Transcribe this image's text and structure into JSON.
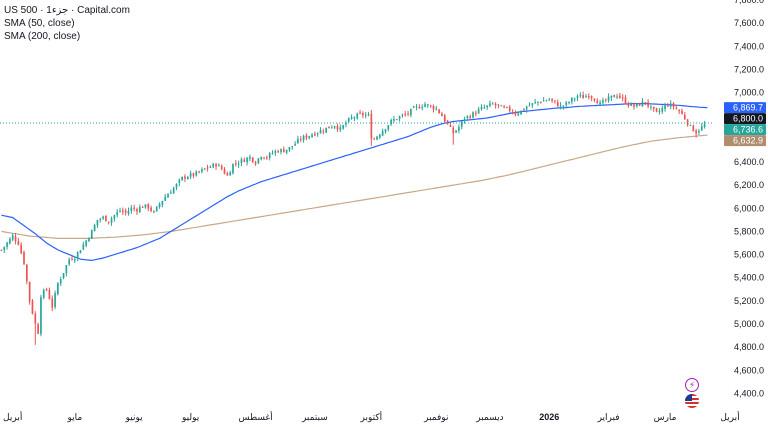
{
  "legend": {
    "title": "US 500 · 1جزء · Capital.com",
    "sma50": "SMA (50, close)",
    "sma200": "SMA (200, close)"
  },
  "colors": {
    "up": "#26a69a",
    "down": "#ef5350",
    "sma50": "#2962ff",
    "sma200": "#c8a88a",
    "price_line": "#26a69a"
  },
  "icons": [
    "lightning-icon",
    "us-flag-icon"
  ],
  "chart_data": {
    "type": "candlestick",
    "ylim": [
      4300,
      7800
    ],
    "y_ticks": [
      {
        "value": 7800,
        "label": "7,800.0"
      },
      {
        "value": 7600,
        "label": "7,600.0"
      },
      {
        "value": 7400,
        "label": "7,400.0"
      },
      {
        "value": 7200,
        "label": "7,200.0"
      },
      {
        "value": 7000,
        "label": "7,000.0"
      },
      {
        "value": 6800,
        "label": "6,800.0"
      },
      {
        "value": 6600,
        "label": "6,600.0"
      },
      {
        "value": 6400,
        "label": "6,400.0"
      },
      {
        "value": 6200,
        "label": "6,200.0"
      },
      {
        "value": 6000,
        "label": "6,000.0"
      },
      {
        "value": 5800,
        "label": "5,800.0"
      },
      {
        "value": 5600,
        "label": "5,600.0"
      },
      {
        "value": 5400,
        "label": "5,400.0"
      },
      {
        "value": 5200,
        "label": "5,200.0"
      },
      {
        "value": 5000,
        "label": "5,000.0"
      },
      {
        "value": 4800,
        "label": "4,800.0"
      },
      {
        "value": 4600,
        "label": "4,600.0"
      },
      {
        "value": 4400,
        "label": "4,400.0"
      }
    ],
    "x_ticks": [
      {
        "label": "أبريل",
        "bar": 4
      },
      {
        "label": "مايو",
        "bar": 26
      },
      {
        "label": "يونيو",
        "bar": 47
      },
      {
        "label": "يوليو",
        "bar": 67
      },
      {
        "label": "أغسطس",
        "bar": 90
      },
      {
        "label": "سبتمبر",
        "bar": 111
      },
      {
        "label": "أكتوبر",
        "bar": 131
      },
      {
        "label": "نوفمبر",
        "bar": 154
      },
      {
        "label": "ديسمبر",
        "bar": 173
      },
      {
        "label": "2026",
        "bar": 194,
        "bold": true
      },
      {
        "label": "فبراير",
        "bar": 215
      },
      {
        "label": "مارس",
        "bar": 235
      },
      {
        "label": "أبريل",
        "bar": 258
      }
    ],
    "price_tags": [
      {
        "label": "6,869.7",
        "value": 6869.7,
        "color": "#2962ff"
      },
      {
        "label": "6,800.0",
        "value": 6800.0,
        "color": "#131722"
      },
      {
        "label": "6,736.6",
        "value": 6736.6,
        "color": "#26a69a"
      },
      {
        "label": "6,632.9",
        "value": 6632.9,
        "color": "#b08d6e"
      }
    ],
    "current_price": 6736.6,
    "bar_count": 250,
    "close_path": [
      [
        0,
        5640
      ],
      [
        4,
        5760
      ],
      [
        6,
        5700
      ],
      [
        8,
        5530
      ],
      [
        10,
        5200
      ],
      [
        12,
        5000
      ],
      [
        13,
        4930
      ],
      [
        14,
        5250
      ],
      [
        16,
        5300
      ],
      [
        18,
        5150
      ],
      [
        20,
        5350
      ],
      [
        22,
        5450
      ],
      [
        24,
        5560
      ],
      [
        26,
        5580
      ],
      [
        28,
        5650
      ],
      [
        30,
        5720
      ],
      [
        32,
        5800
      ],
      [
        34,
        5900
      ],
      [
        36,
        5920
      ],
      [
        38,
        5890
      ],
      [
        40,
        5940
      ],
      [
        42,
        5980
      ],
      [
        44,
        5960
      ],
      [
        46,
        6000
      ],
      [
        48,
        5990
      ],
      [
        50,
        6020
      ],
      [
        52,
        6010
      ],
      [
        54,
        5960
      ],
      [
        56,
        6040
      ],
      [
        58,
        6100
      ],
      [
        60,
        6150
      ],
      [
        62,
        6200
      ],
      [
        64,
        6260
      ],
      [
        66,
        6280
      ],
      [
        68,
        6290
      ],
      [
        70,
        6310
      ],
      [
        72,
        6340
      ],
      [
        74,
        6360
      ],
      [
        76,
        6380
      ],
      [
        78,
        6340
      ],
      [
        80,
        6280
      ],
      [
        82,
        6380
      ],
      [
        84,
        6400
      ],
      [
        86,
        6420
      ],
      [
        88,
        6440
      ],
      [
        90,
        6400
      ],
      [
        92,
        6460
      ],
      [
        94,
        6440
      ],
      [
        96,
        6480
      ],
      [
        98,
        6500
      ],
      [
        100,
        6500
      ],
      [
        102,
        6520
      ],
      [
        104,
        6560
      ],
      [
        106,
        6600
      ],
      [
        108,
        6620
      ],
      [
        110,
        6640
      ],
      [
        112,
        6660
      ],
      [
        114,
        6680
      ],
      [
        116,
        6700
      ],
      [
        118,
        6720
      ],
      [
        120,
        6680
      ],
      [
        122,
        6740
      ],
      [
        124,
        6780
      ],
      [
        126,
        6800
      ],
      [
        128,
        6810
      ],
      [
        130,
        6800
      ],
      [
        131,
        6620
      ],
      [
        132,
        6600
      ],
      [
        134,
        6650
      ],
      [
        136,
        6700
      ],
      [
        138,
        6750
      ],
      [
        140,
        6780
      ],
      [
        142,
        6800
      ],
      [
        144,
        6820
      ],
      [
        146,
        6860
      ],
      [
        148,
        6880
      ],
      [
        150,
        6900
      ],
      [
        152,
        6880
      ],
      [
        154,
        6860
      ],
      [
        156,
        6800
      ],
      [
        158,
        6720
      ],
      [
        160,
        6650
      ],
      [
        162,
        6700
      ],
      [
        164,
        6780
      ],
      [
        166,
        6800
      ],
      [
        168,
        6830
      ],
      [
        170,
        6860
      ],
      [
        172,
        6880
      ],
      [
        174,
        6900
      ],
      [
        176,
        6880
      ],
      [
        178,
        6860
      ],
      [
        180,
        6850
      ],
      [
        182,
        6820
      ],
      [
        184,
        6840
      ],
      [
        186,
        6880
      ],
      [
        188,
        6900
      ],
      [
        190,
        6920
      ],
      [
        192,
        6930
      ],
      [
        194,
        6940
      ],
      [
        196,
        6910
      ],
      [
        198,
        6880
      ],
      [
        200,
        6900
      ],
      [
        202,
        6940
      ],
      [
        204,
        6970
      ],
      [
        206,
        6960
      ],
      [
        208,
        6980
      ],
      [
        210,
        6950
      ],
      [
        212,
        6900
      ],
      [
        214,
        6930
      ],
      [
        216,
        6960
      ],
      [
        218,
        6980
      ],
      [
        220,
        6940
      ],
      [
        222,
        6900
      ],
      [
        224,
        6880
      ],
      [
        226,
        6900
      ],
      [
        228,
        6920
      ],
      [
        230,
        6860
      ],
      [
        232,
        6820
      ],
      [
        234,
        6860
      ],
      [
        236,
        6900
      ],
      [
        238,
        6880
      ],
      [
        240,
        6840
      ],
      [
        242,
        6780
      ],
      [
        244,
        6700
      ],
      [
        246,
        6660
      ],
      [
        248,
        6700
      ],
      [
        250,
        6740
      ]
    ],
    "lows": [
      {
        "bar": 12,
        "value": 4820
      },
      {
        "bar": 131,
        "value": 6540
      },
      {
        "bar": 160,
        "value": 6550
      },
      {
        "bar": 246,
        "value": 6610
      }
    ],
    "sma50_path": [
      [
        0,
        5940
      ],
      [
        4,
        5920
      ],
      [
        8,
        5850
      ],
      [
        12,
        5780
      ],
      [
        16,
        5700
      ],
      [
        20,
        5640
      ],
      [
        24,
        5600
      ],
      [
        28,
        5560
      ],
      [
        32,
        5550
      ],
      [
        36,
        5570
      ],
      [
        40,
        5600
      ],
      [
        44,
        5630
      ],
      [
        48,
        5660
      ],
      [
        52,
        5700
      ],
      [
        56,
        5740
      ],
      [
        60,
        5800
      ],
      [
        64,
        5860
      ],
      [
        68,
        5920
      ],
      [
        72,
        5980
      ],
      [
        76,
        6040
      ],
      [
        80,
        6100
      ],
      [
        84,
        6150
      ],
      [
        88,
        6190
      ],
      [
        92,
        6230
      ],
      [
        96,
        6260
      ],
      [
        100,
        6290
      ],
      [
        104,
        6320
      ],
      [
        108,
        6350
      ],
      [
        112,
        6380
      ],
      [
        116,
        6410
      ],
      [
        120,
        6440
      ],
      [
        124,
        6470
      ],
      [
        128,
        6500
      ],
      [
        132,
        6530
      ],
      [
        136,
        6560
      ],
      [
        140,
        6590
      ],
      [
        144,
        6620
      ],
      [
        148,
        6660
      ],
      [
        152,
        6700
      ],
      [
        156,
        6730
      ],
      [
        160,
        6750
      ],
      [
        164,
        6760
      ],
      [
        168,
        6770
      ],
      [
        172,
        6780
      ],
      [
        176,
        6800
      ],
      [
        180,
        6820
      ],
      [
        184,
        6835
      ],
      [
        188,
        6845
      ],
      [
        192,
        6855
      ],
      [
        196,
        6865
      ],
      [
        200,
        6870
      ],
      [
        204,
        6880
      ],
      [
        208,
        6885
      ],
      [
        212,
        6890
      ],
      [
        216,
        6895
      ],
      [
        220,
        6900
      ],
      [
        224,
        6905
      ],
      [
        228,
        6905
      ],
      [
        232,
        6900
      ],
      [
        236,
        6895
      ],
      [
        240,
        6890
      ],
      [
        244,
        6880
      ],
      [
        248,
        6872
      ],
      [
        250,
        6869.7
      ]
    ],
    "sma200_path": [
      [
        0,
        5800
      ],
      [
        10,
        5760
      ],
      [
        20,
        5740
      ],
      [
        30,
        5740
      ],
      [
        40,
        5750
      ],
      [
        50,
        5770
      ],
      [
        60,
        5800
      ],
      [
        70,
        5840
      ],
      [
        80,
        5880
      ],
      [
        90,
        5920
      ],
      [
        100,
        5960
      ],
      [
        110,
        6000
      ],
      [
        120,
        6040
      ],
      [
        130,
        6080
      ],
      [
        140,
        6120
      ],
      [
        150,
        6160
      ],
      [
        160,
        6200
      ],
      [
        170,
        6240
      ],
      [
        180,
        6290
      ],
      [
        190,
        6350
      ],
      [
        200,
        6410
      ],
      [
        210,
        6470
      ],
      [
        220,
        6530
      ],
      [
        230,
        6580
      ],
      [
        240,
        6610
      ],
      [
        250,
        6632.9
      ]
    ]
  }
}
